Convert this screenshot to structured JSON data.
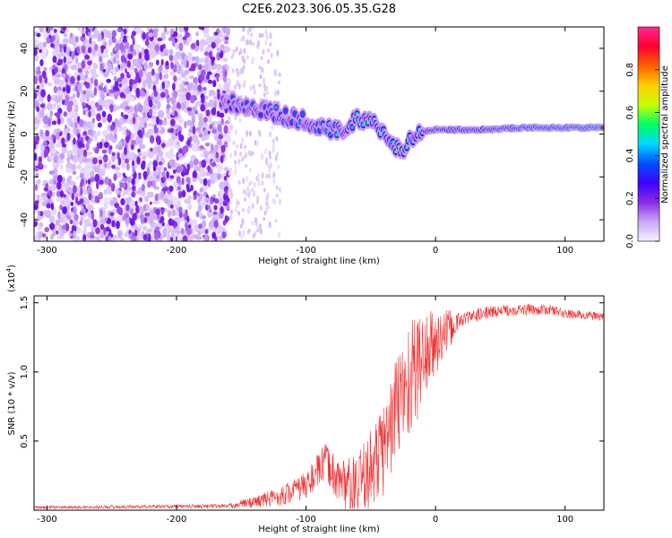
{
  "title": "C2E6.2023.306.05.35.G28",
  "chart_data": [
    {
      "type": "heatmap",
      "xlabel": "Height of straight line (km)",
      "ylabel": "Frequency (Hz)",
      "xlim": [
        -310,
        130
      ],
      "ylim": [
        -50,
        50
      ],
      "xticks": [
        -300,
        -200,
        -100,
        0,
        100
      ],
      "yticks": [
        -40,
        -20,
        0,
        20,
        40
      ],
      "colorbar": {
        "label": "Normalized spectral amplitude",
        "range": [
          0,
          1
        ],
        "ticks": [
          0.0,
          0.2,
          0.4,
          0.6,
          0.8
        ],
        "colors": [
          "#f7f0ff",
          "#c8a8f5",
          "#8a2be2",
          "#3f00ff",
          "#0050ff",
          "#00d8ff",
          "#00ff60",
          "#c8ff00",
          "#ffd000",
          "#ff6000",
          "#ff0030",
          "#ff2890"
        ]
      },
      "features": [
        {
          "name": "noise",
          "x_range": [
            -310,
            -160
          ],
          "freq_range": [
            -50,
            50
          ],
          "amplitude": 0.12
        },
        {
          "name": "sparse-noise",
          "x_range": [
            -160,
            -120
          ],
          "freq_range": [
            -50,
            50
          ],
          "amplitude": 0.05
        },
        {
          "name": "signal-track",
          "points": [
            [
              -165,
              16
            ],
            [
              -140,
              12
            ],
            [
              -120,
              9
            ],
            [
              -100,
              6
            ],
            [
              -85,
              3
            ],
            [
              -70,
              0
            ],
            [
              -60,
              8
            ],
            [
              -45,
              4
            ],
            [
              -35,
              -4
            ],
            [
              -25,
              -8
            ],
            [
              -15,
              1
            ],
            [
              0,
              2
            ],
            [
              30,
              2
            ],
            [
              70,
              3
            ],
            [
              100,
              3
            ],
            [
              130,
              3
            ]
          ],
          "amplitude_start": 0.35,
          "amplitude_end": 0.85
        }
      ]
    },
    {
      "type": "line",
      "xlabel": "Height of straight line (km)",
      "ylabel": "SNR (10 * v/v)",
      "yscale_label": "(x10",
      "yscale_exponent": "4",
      "yscale_close": ")",
      "xlim": [
        -310,
        130
      ],
      "ylim": [
        0,
        1.55
      ],
      "xticks": [
        -300,
        -200,
        -100,
        0,
        100
      ],
      "yticks": [
        0.5,
        1.0,
        1.5
      ],
      "yticklabels": [
        "0.5",
        "1.0",
        "1.5"
      ],
      "color": "#ee3333",
      "envelope": [
        [
          -310,
          0.02
        ],
        [
          -160,
          0.03
        ],
        [
          -140,
          0.06
        ],
        [
          -120,
          0.1
        ],
        [
          -100,
          0.18
        ],
        [
          -85,
          0.35
        ],
        [
          -75,
          0.22
        ],
        [
          -60,
          0.15
        ],
        [
          -50,
          0.3
        ],
        [
          -40,
          0.45
        ],
        [
          -30,
          0.75
        ],
        [
          -20,
          0.95
        ],
        [
          -10,
          1.1
        ],
        [
          0,
          1.2
        ],
        [
          10,
          1.3
        ],
        [
          20,
          1.38
        ],
        [
          40,
          1.43
        ],
        [
          60,
          1.45
        ],
        [
          90,
          1.45
        ],
        [
          100,
          1.42
        ],
        [
          130,
          1.4
        ]
      ],
      "noise_amplitude": [
        [
          -310,
          0.01
        ],
        [
          -160,
          0.015
        ],
        [
          -100,
          0.1
        ],
        [
          -80,
          0.15
        ],
        [
          -40,
          0.35
        ],
        [
          -20,
          0.45
        ],
        [
          0,
          0.25
        ],
        [
          20,
          0.05
        ],
        [
          130,
          0.03
        ]
      ]
    }
  ]
}
